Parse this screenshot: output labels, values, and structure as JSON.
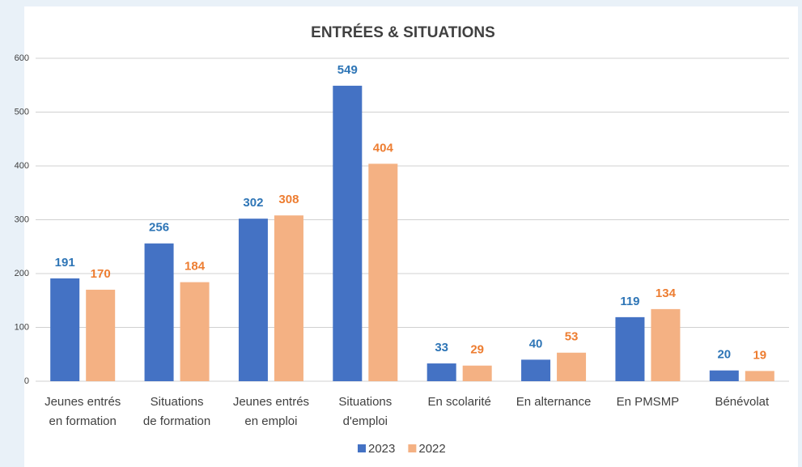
{
  "chart_data": {
    "type": "bar",
    "title": "ENTRÉES & SITUATIONS",
    "categories": [
      [
        "Jeunes entrés",
        "en formation"
      ],
      [
        "Situations",
        "de formation"
      ],
      [
        "Jeunes entrés",
        "en emploi"
      ],
      [
        "Situations",
        "d'emploi"
      ],
      [
        "En scolarité"
      ],
      [
        "En alternance"
      ],
      [
        "En PMSMP"
      ],
      [
        "Bénévolat"
      ]
    ],
    "series": [
      {
        "name": "2023",
        "color": "#4472c4",
        "label_color": "#2e75b6",
        "values": [
          191,
          256,
          302,
          549,
          33,
          40,
          119,
          20
        ]
      },
      {
        "name": "2022",
        "color": "#f4b183",
        "label_color": "#ed7d31",
        "values": [
          170,
          184,
          308,
          404,
          29,
          53,
          134,
          19
        ]
      }
    ],
    "ylim": [
      0,
      600
    ],
    "yticks": [
      0,
      100,
      200,
      300,
      400,
      500,
      600
    ],
    "grid": true,
    "legend": "bottom"
  }
}
